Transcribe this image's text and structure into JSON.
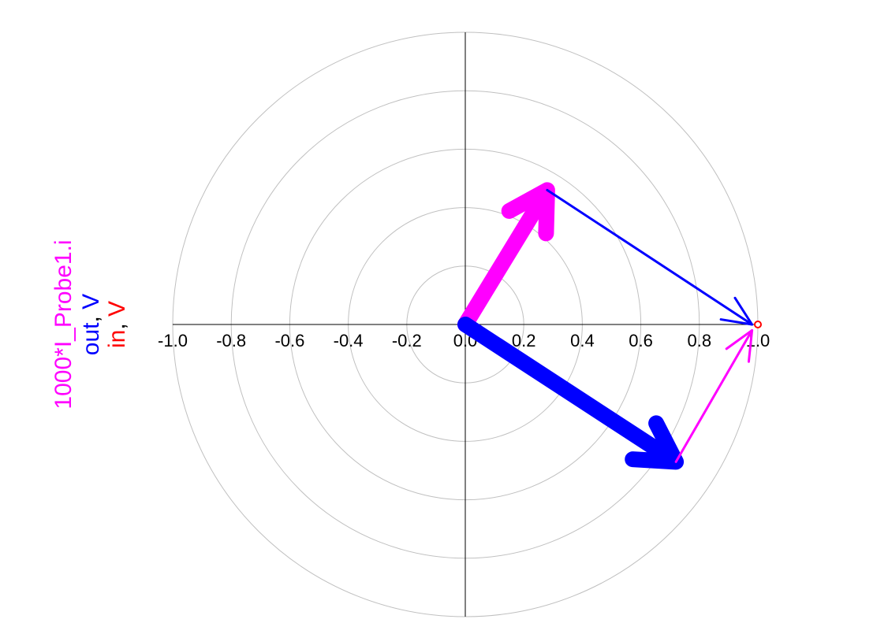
{
  "chart_data": {
    "type": "polar-phasor",
    "r_ticks": [
      -1.0,
      -0.8,
      -0.6,
      -0.4,
      -0.2,
      0.0,
      0.2,
      0.4,
      0.6,
      0.8,
      1.0
    ],
    "tick_labels": [
      "-1.0",
      "-0.8",
      "-0.6",
      "-0.4",
      "-0.2",
      "0.0",
      "0.2",
      "0.4",
      "0.6",
      "0.8",
      "1.0"
    ],
    "rings": [
      0.2,
      0.4,
      0.6,
      0.8,
      1.0
    ],
    "grid": true,
    "legend": [
      {
        "parts": [
          {
            "text": "1000*I_Probe1.i",
            "color": "#ff00ff"
          }
        ]
      },
      {
        "parts": [
          {
            "text": "out",
            "color": "#0000ff"
          },
          {
            "text": ", ",
            "color": "#000000"
          },
          {
            "text": "V",
            "color": "#0000ff"
          }
        ]
      },
      {
        "parts": [
          {
            "text": "in",
            "color": "#ff0000"
          },
          {
            "text": ", ",
            "color": "#000000"
          },
          {
            "text": "V",
            "color": "#ff0000"
          }
        ]
      }
    ],
    "series": [
      {
        "name": "1000*I_Probe1.i",
        "color": "#ff00ff",
        "style": "thick",
        "from": [
          0,
          0
        ],
        "to": [
          0.28,
          0.46
        ]
      },
      {
        "name": "out, V",
        "color": "#0000ff",
        "style": "thick",
        "from": [
          0,
          0
        ],
        "to": [
          0.72,
          -0.47
        ]
      },
      {
        "name": "1000*I_Probe1.i",
        "color": "#ff00ff",
        "style": "thin",
        "from": [
          0.72,
          -0.47
        ],
        "to": [
          0.98,
          -0.02
        ]
      },
      {
        "name": "out, V",
        "color": "#0000ff",
        "style": "thin",
        "from": [
          0.28,
          0.46
        ],
        "to": [
          0.98,
          0.0
        ]
      },
      {
        "name": "in, V",
        "color": "#ff0000",
        "style": "point",
        "from": [
          0,
          0
        ],
        "to": [
          1.0,
          0.0
        ]
      }
    ]
  }
}
